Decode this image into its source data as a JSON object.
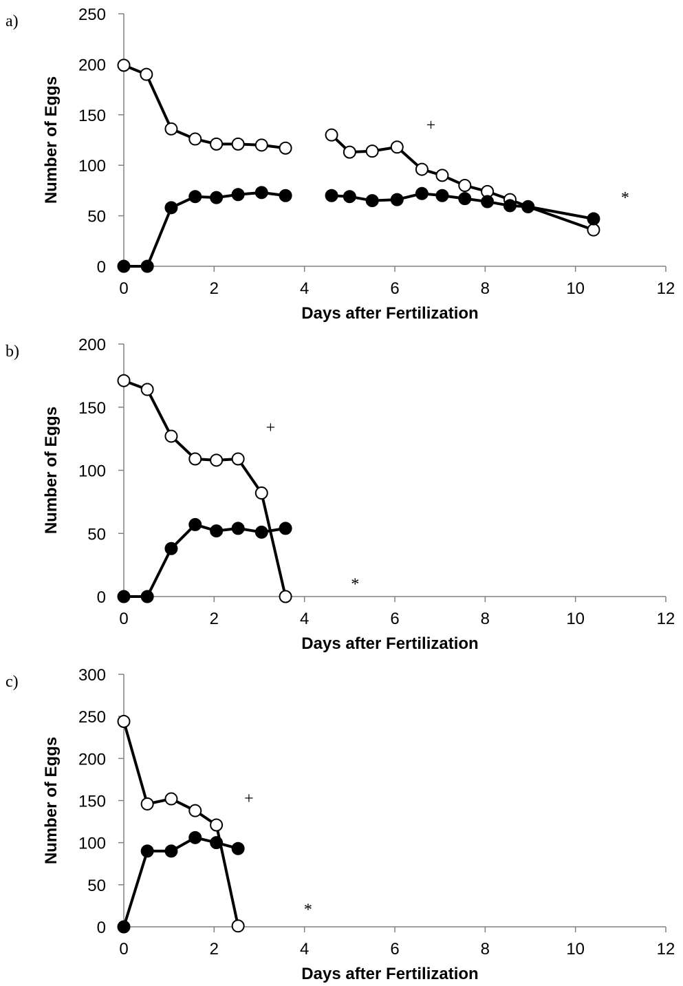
{
  "chart_data": [
    {
      "type": "line",
      "panel_label": "a)",
      "xlabel": "Days after Fertilization",
      "ylabel": "Number of Eggs",
      "xlim": [
        0,
        12
      ],
      "ylim": [
        0,
        250
      ],
      "xticks": [
        0,
        2,
        4,
        6,
        8,
        10,
        12
      ],
      "yticks": [
        0,
        50,
        100,
        150,
        200,
        250
      ],
      "grid": false,
      "series": [
        {
          "marker": "open-circle",
          "segments": [
            [
              [
                0,
                199
              ],
              [
                0.5,
                190
              ],
              [
                1.05,
                136
              ],
              [
                1.58,
                126
              ],
              [
                2.05,
                121
              ],
              [
                2.53,
                121
              ],
              [
                3.05,
                120
              ],
              [
                3.58,
                117
              ]
            ],
            [
              [
                4.6,
                130
              ],
              [
                5.0,
                113
              ],
              [
                5.5,
                114
              ],
              [
                6.05,
                118
              ],
              [
                6.6,
                96
              ],
              [
                7.05,
                90
              ],
              [
                7.55,
                80
              ],
              [
                8.05,
                74
              ],
              [
                8.55,
                66
              ],
              [
                8.95,
                59
              ],
              [
                10.4,
                36
              ]
            ]
          ]
        },
        {
          "marker": "filled-circle",
          "segments": [
            [
              [
                0,
                0
              ],
              [
                0.52,
                0
              ],
              [
                1.05,
                58
              ],
              [
                1.58,
                69
              ],
              [
                2.05,
                68
              ],
              [
                2.53,
                71
              ],
              [
                3.05,
                73
              ],
              [
                3.58,
                70
              ]
            ],
            [
              [
                4.6,
                70
              ],
              [
                5.0,
                69
              ],
              [
                5.5,
                65
              ],
              [
                6.05,
                66
              ],
              [
                6.6,
                72
              ],
              [
                7.05,
                70
              ],
              [
                7.55,
                67
              ],
              [
                8.05,
                64
              ],
              [
                8.55,
                60
              ],
              [
                8.95,
                59
              ],
              [
                10.4,
                47
              ]
            ]
          ]
        }
      ],
      "annotations": [
        {
          "text": "+",
          "x": 6.8,
          "y": 140
        },
        {
          "text": "*",
          "x": 11.1,
          "y": 68
        }
      ]
    },
    {
      "type": "line",
      "panel_label": "b)",
      "xlabel": "Days after Fertilization",
      "ylabel": "Number of Eggs",
      "xlim": [
        0,
        12
      ],
      "ylim": [
        0,
        200
      ],
      "xticks": [
        0,
        2,
        4,
        6,
        8,
        10,
        12
      ],
      "yticks": [
        0,
        50,
        100,
        150,
        200
      ],
      "grid": false,
      "series": [
        {
          "marker": "open-circle",
          "segments": [
            [
              [
                0,
                171
              ],
              [
                0.52,
                164
              ],
              [
                1.05,
                127
              ],
              [
                1.58,
                109
              ],
              [
                2.05,
                108
              ],
              [
                2.53,
                109
              ],
              [
                3.05,
                82
              ],
              [
                3.58,
                0
              ]
            ]
          ]
        },
        {
          "marker": "filled-circle",
          "segments": [
            [
              [
                0,
                0
              ],
              [
                0.52,
                0
              ],
              [
                1.05,
                38
              ],
              [
                1.58,
                57
              ],
              [
                2.05,
                52
              ],
              [
                2.53,
                54
              ],
              [
                3.05,
                51
              ],
              [
                3.58,
                54
              ]
            ]
          ]
        }
      ],
      "annotations": [
        {
          "text": "+",
          "x": 3.25,
          "y": 134
        },
        {
          "text": "*",
          "x": 5.12,
          "y": 10
        }
      ]
    },
    {
      "type": "line",
      "panel_label": "c)",
      "xlabel": "Days after Fertilization",
      "ylabel": "Number of Eggs",
      "xlim": [
        0,
        12
      ],
      "ylim": [
        0,
        300
      ],
      "xticks": [
        0,
        2,
        4,
        6,
        8,
        10,
        12
      ],
      "yticks": [
        0,
        50,
        100,
        150,
        200,
        250,
        300
      ],
      "grid": false,
      "series": [
        {
          "marker": "open-circle",
          "segments": [
            [
              [
                0,
                244
              ],
              [
                0.52,
                146
              ],
              [
                1.05,
                152
              ],
              [
                1.58,
                138
              ],
              [
                2.05,
                121
              ],
              [
                2.53,
                1
              ]
            ]
          ]
        },
        {
          "marker": "filled-circle",
          "segments": [
            [
              [
                0,
                0
              ],
              [
                0.52,
                90
              ],
              [
                1.05,
                90
              ],
              [
                1.58,
                106
              ],
              [
                2.05,
                100
              ],
              [
                2.53,
                93
              ]
            ]
          ]
        }
      ],
      "annotations": [
        {
          "text": "+",
          "x": 2.77,
          "y": 153
        },
        {
          "text": "*",
          "x": 4.08,
          "y": 21
        }
      ]
    }
  ]
}
